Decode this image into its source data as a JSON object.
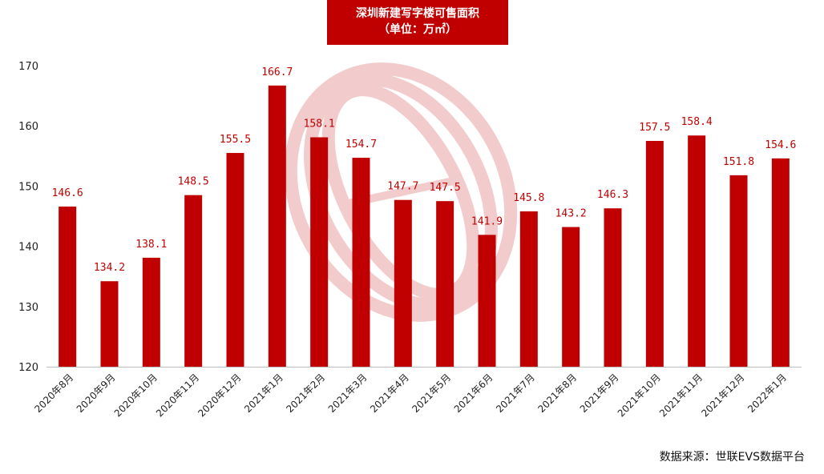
{
  "title_line1": "深圳新建写字楼可售面积",
  "title_line2": "（单位：万㎡）",
  "source": "数据来源：世联EVS数据平台",
  "colors": {
    "bar": "#c00000",
    "label": "#c00000",
    "title_bg": "#c00000",
    "watermark": "#e8a3a3"
  },
  "chart_data": {
    "type": "bar",
    "title": "深圳新建写字楼可售面积",
    "subtitle": "（单位：万㎡）",
    "categories": [
      "2020年8月",
      "2020年9月",
      "2020年10月",
      "2020年11月",
      "2020年12月",
      "2021年1月",
      "2021年2月",
      "2021年3月",
      "2021年4月",
      "2021年5月",
      "2021年6月",
      "2021年7月",
      "2021年8月",
      "2021年9月",
      "2021年10月",
      "2021年11月",
      "2021年12月",
      "2022年1月"
    ],
    "values": [
      146.6,
      134.2,
      138.1,
      148.5,
      155.5,
      166.7,
      158.1,
      154.7,
      147.7,
      147.5,
      141.9,
      145.8,
      143.2,
      146.3,
      157.5,
      158.4,
      151.8,
      154.6
    ],
    "value_labels": [
      "146.6",
      "134.2",
      "138.1",
      "148.5",
      "155.5",
      "166.7",
      "158.1",
      "154.7",
      "147.7",
      "147.5",
      "141.9",
      "145.8",
      "143.2",
      "146.3",
      "157.5",
      "158.4",
      "151.8",
      "154.6"
    ],
    "y_ticks": [
      120,
      130,
      140,
      150,
      160,
      170
    ],
    "ylim": [
      120,
      170
    ],
    "grid": false,
    "legend": "none"
  }
}
